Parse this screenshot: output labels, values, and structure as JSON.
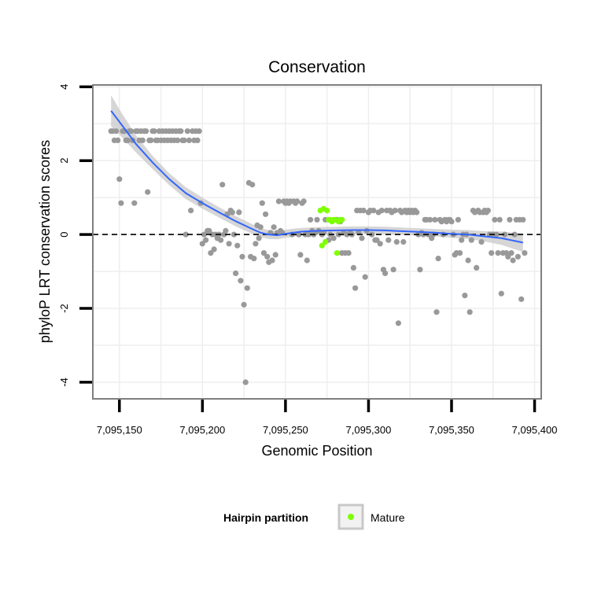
{
  "chart_data": {
    "type": "scatter",
    "title": "Conservation",
    "xlabel": "Genomic Position",
    "ylabel": "phyloP LRT conservation scores",
    "xlim": [
      7095134,
      7095404
    ],
    "ylim": [
      -4.45,
      4.05
    ],
    "x_ticks": [
      7095150,
      7095200,
      7095250,
      7095300,
      7095350,
      7095400
    ],
    "x_tick_labels": [
      "7,095,150",
      "7,095,200",
      "7,095,250",
      "7,095,300",
      "7,095,350",
      "7,095,400"
    ],
    "y_ticks": [
      -4,
      -2,
      0,
      2,
      4
    ],
    "y_tick_labels": [
      "-4",
      "-2",
      "0",
      "2",
      "4"
    ],
    "reference_line": {
      "y": 0,
      "style": "dashed"
    },
    "legend": {
      "title": "Hairpin partition",
      "position": "bottom",
      "entries": [
        "Mature"
      ]
    },
    "colors": {
      "Hairpin": "#999999",
      "Mature": "#7fff00",
      "smooth_line": "#3366ff",
      "confidence_band": "#c8c8c8",
      "panel_border": "#7f7f7f",
      "grid": "#eeeeee"
    },
    "series": [
      {
        "name": "Hairpin",
        "points": [
          [
            7095145,
            2.8
          ],
          [
            7095146,
            2.8
          ],
          [
            7095147,
            2.55
          ],
          [
            7095148,
            2.8
          ],
          [
            7095149,
            2.55
          ],
          [
            7095150,
            1.5
          ],
          [
            7095151,
            0.85
          ],
          [
            7095152,
            2.8
          ],
          [
            7095153,
            2.8
          ],
          [
            7095154,
            2.55
          ],
          [
            7095155,
            2.55
          ],
          [
            7095156,
            2.8
          ],
          [
            7095157,
            2.8
          ],
          [
            7095158,
            2.55
          ],
          [
            7095159,
            0.85
          ],
          [
            7095160,
            2.8
          ],
          [
            7095161,
            2.8
          ],
          [
            7095162,
            2.55
          ],
          [
            7095163,
            2.8
          ],
          [
            7095164,
            2.55
          ],
          [
            7095165,
            2.8
          ],
          [
            7095166,
            2.8
          ],
          [
            7095167,
            1.15
          ],
          [
            7095168,
            2.55
          ],
          [
            7095169,
            2.55
          ],
          [
            7095170,
            2.8
          ],
          [
            7095171,
            2.8
          ],
          [
            7095172,
            2.55
          ],
          [
            7095173,
            2.55
          ],
          [
            7095174,
            2.8
          ],
          [
            7095175,
            2.55
          ],
          [
            7095176,
            2.8
          ],
          [
            7095177,
            2.55
          ],
          [
            7095178,
            2.8
          ],
          [
            7095179,
            2.55
          ],
          [
            7095180,
            2.8
          ],
          [
            7095181,
            2.55
          ],
          [
            7095182,
            2.8
          ],
          [
            7095183,
            2.55
          ],
          [
            7095184,
            2.8
          ],
          [
            7095185,
            2.55
          ],
          [
            7095186,
            2.8
          ],
          [
            7095187,
            2.8
          ],
          [
            7095188,
            2.55
          ],
          [
            7095189,
            2.55
          ],
          [
            7095190,
            0.0
          ],
          [
            7095191,
            2.8
          ],
          [
            7095192,
            2.55
          ],
          [
            7095193,
            0.65
          ],
          [
            7095194,
            2.8
          ],
          [
            7095195,
            2.55
          ],
          [
            7095196,
            2.8
          ],
          [
            7095197,
            2.55
          ],
          [
            7095198,
            2.8
          ],
          [
            7095199,
            0.85
          ],
          [
            7095200,
            -0.25
          ],
          [
            7095201,
            0.0
          ],
          [
            7095202,
            -0.15
          ],
          [
            7095203,
            0.1
          ],
          [
            7095204,
            0.1
          ],
          [
            7095205,
            -0.5
          ],
          [
            7095206,
            0.0
          ],
          [
            7095207,
            -0.4
          ],
          [
            7095208,
            0.0
          ],
          [
            7095209,
            -0.1
          ],
          [
            7095210,
            0.0
          ],
          [
            7095211,
            -0.15
          ],
          [
            7095212,
            1.35
          ],
          [
            7095213,
            0.0
          ],
          [
            7095214,
            0.1
          ],
          [
            7095215,
            0.55
          ],
          [
            7095216,
            -0.25
          ],
          [
            7095217,
            0.65
          ],
          [
            7095218,
            0.6
          ],
          [
            7095219,
            0.0
          ],
          [
            7095220,
            -1.05
          ],
          [
            7095221,
            -0.3
          ],
          [
            7095222,
            0.6
          ],
          [
            7095223,
            -1.25
          ],
          [
            7095224,
            -0.6
          ],
          [
            7095225,
            -1.9
          ],
          [
            7095226,
            -4.0
          ],
          [
            7095227,
            -1.45
          ],
          [
            7095228,
            1.4
          ],
          [
            7095229,
            -0.6
          ],
          [
            7095230,
            1.35
          ],
          [
            7095231,
            -0.65
          ],
          [
            7095232,
            -0.25
          ],
          [
            7095233,
            0.25
          ],
          [
            7095234,
            -0.1
          ],
          [
            7095235,
            0.2
          ],
          [
            7095236,
            0.85
          ],
          [
            7095237,
            -0.5
          ],
          [
            7095238,
            0.55
          ],
          [
            7095239,
            -0.6
          ],
          [
            7095240,
            -0.75
          ],
          [
            7095241,
            0.05
          ],
          [
            7095242,
            -0.7
          ],
          [
            7095243,
            0.2
          ],
          [
            7095244,
            -0.55
          ],
          [
            7095245,
            0.05
          ],
          [
            7095246,
            0.9
          ],
          [
            7095247,
            0.1
          ],
          [
            7095248,
            0.05
          ],
          [
            7095249,
            0.9
          ],
          [
            7095250,
            0.85
          ],
          [
            7095251,
            0.9
          ],
          [
            7095252,
            0.85
          ],
          [
            7095253,
            0.9
          ],
          [
            7095254,
            0.0
          ],
          [
            7095255,
            0.9
          ],
          [
            7095256,
            0.85
          ],
          [
            7095257,
            0.9
          ],
          [
            7095258,
            0.0
          ],
          [
            7095259,
            -0.55
          ],
          [
            7095260,
            0.85
          ],
          [
            7095261,
            0.9
          ],
          [
            7095262,
            0.0
          ],
          [
            7095263,
            -0.7
          ],
          [
            7095264,
            0.0
          ],
          [
            7095265,
            0.4
          ],
          [
            7095266,
            0.1
          ],
          [
            7095267,
            0.0
          ],
          [
            7095268,
            0.05
          ],
          [
            7095269,
            0.4
          ],
          [
            7095270,
            0.1
          ],
          [
            7095272,
            0.0
          ],
          [
            7095273,
            0.05
          ],
          [
            7095274,
            0.4
          ],
          [
            7095276,
            -0.15
          ],
          [
            7095277,
            0.0
          ],
          [
            7095279,
            -0.1
          ],
          [
            7095281,
            0.4
          ],
          [
            7095282,
            0.0
          ],
          [
            7095283,
            0.35
          ],
          [
            7095284,
            -0.5
          ],
          [
            7095285,
            0.05
          ],
          [
            7095286,
            -0.5
          ],
          [
            7095287,
            0.0
          ],
          [
            7095288,
            -0.5
          ],
          [
            7095289,
            0.05
          ],
          [
            7095290,
            0.0
          ],
          [
            7095291,
            -0.9
          ],
          [
            7095292,
            -1.45
          ],
          [
            7095293,
            0.65
          ],
          [
            7095294,
            0.05
          ],
          [
            7095295,
            0.65
          ],
          [
            7095296,
            -0.1
          ],
          [
            7095297,
            0.65
          ],
          [
            7095298,
            -1.15
          ],
          [
            7095299,
            0.1
          ],
          [
            7095300,
            0.6
          ],
          [
            7095301,
            0.65
          ],
          [
            7095302,
            0.0
          ],
          [
            7095303,
            0.65
          ],
          [
            7095304,
            -0.15
          ],
          [
            7095305,
            -0.15
          ],
          [
            7095306,
            0.6
          ],
          [
            7095307,
            -0.25
          ],
          [
            7095308,
            0.65
          ],
          [
            7095309,
            -0.95
          ],
          [
            7095310,
            -1.05
          ],
          [
            7095311,
            0.65
          ],
          [
            7095312,
            -0.15
          ],
          [
            7095313,
            0.65
          ],
          [
            7095314,
            0.6
          ],
          [
            7095315,
            -0.95
          ],
          [
            7095316,
            0.65
          ],
          [
            7095317,
            -0.2
          ],
          [
            7095318,
            -2.4
          ],
          [
            7095319,
            0.65
          ],
          [
            7095320,
            0.6
          ],
          [
            7095321,
            -0.2
          ],
          [
            7095322,
            0.65
          ],
          [
            7095323,
            0.6
          ],
          [
            7095324,
            0.65
          ],
          [
            7095325,
            0.6
          ],
          [
            7095326,
            0.65
          ],
          [
            7095327,
            0.6
          ],
          [
            7095328,
            0.65
          ],
          [
            7095329,
            0.6
          ],
          [
            7095330,
            0.0
          ],
          [
            7095331,
            -0.95
          ],
          [
            7095332,
            0.05
          ],
          [
            7095333,
            0.0
          ],
          [
            7095334,
            0.4
          ],
          [
            7095335,
            0.4
          ],
          [
            7095336,
            0.0
          ],
          [
            7095337,
            0.4
          ],
          [
            7095338,
            -0.1
          ],
          [
            7095339,
            0.0
          ],
          [
            7095340,
            0.4
          ],
          [
            7095341,
            -2.1
          ],
          [
            7095342,
            -0.65
          ],
          [
            7095343,
            0.4
          ],
          [
            7095344,
            0.35
          ],
          [
            7095345,
            0.0
          ],
          [
            7095346,
            0.4
          ],
          [
            7095347,
            0.35
          ],
          [
            7095348,
            0.4
          ],
          [
            7095349,
            0.4
          ],
          [
            7095350,
            0.35
          ],
          [
            7095351,
            0.0
          ],
          [
            7095352,
            -0.55
          ],
          [
            7095353,
            -0.5
          ],
          [
            7095354,
            0.4
          ],
          [
            7095355,
            -0.5
          ],
          [
            7095356,
            -0.15
          ],
          [
            7095357,
            0.0
          ],
          [
            7095358,
            -1.65
          ],
          [
            7095359,
            0.0
          ],
          [
            7095360,
            -0.7
          ],
          [
            7095361,
            -2.1
          ],
          [
            7095362,
            -0.15
          ],
          [
            7095363,
            0.65
          ],
          [
            7095364,
            0.6
          ],
          [
            7095365,
            -0.9
          ],
          [
            7095366,
            0.65
          ],
          [
            7095367,
            0.6
          ],
          [
            7095368,
            -0.2
          ],
          [
            7095369,
            0.6
          ],
          [
            7095370,
            0.65
          ],
          [
            7095371,
            0.6
          ],
          [
            7095372,
            0.65
          ],
          [
            7095373,
            0.0
          ],
          [
            7095374,
            -0.5
          ],
          [
            7095375,
            0.0
          ],
          [
            7095376,
            0.4
          ],
          [
            7095377,
            0.0
          ],
          [
            7095378,
            -0.5
          ],
          [
            7095379,
            0.4
          ],
          [
            7095380,
            -1.6
          ],
          [
            7095381,
            -0.5
          ],
          [
            7095382,
            0.0
          ],
          [
            7095383,
            -0.5
          ],
          [
            7095384,
            -0.6
          ],
          [
            7095385,
            0.4
          ],
          [
            7095386,
            -0.5
          ],
          [
            7095387,
            -0.7
          ],
          [
            7095388,
            0.0
          ],
          [
            7095389,
            0.4
          ],
          [
            7095390,
            -0.6
          ],
          [
            7095391,
            0.4
          ],
          [
            7095392,
            -1.75
          ],
          [
            7095393,
            0.4
          ],
          [
            7095394,
            -0.5
          ]
        ]
      },
      {
        "name": "Mature",
        "points": [
          [
            7095271,
            0.65
          ],
          [
            7095272,
            -0.3
          ],
          [
            7095273,
            0.7
          ],
          [
            7095274,
            -0.2
          ],
          [
            7095275,
            0.65
          ],
          [
            7095276,
            0.4
          ],
          [
            7095277,
            0.4
          ],
          [
            7095278,
            0.35
          ],
          [
            7095279,
            0.4
          ],
          [
            7095280,
            0.4
          ],
          [
            7095281,
            -0.5
          ],
          [
            7095282,
            0.35
          ],
          [
            7095283,
            0.4
          ],
          [
            7095284,
            0.4
          ]
        ]
      }
    ],
    "smooth": {
      "x": [
        7095145,
        7095150,
        7095160,
        7095170,
        7095180,
        7095190,
        7095200,
        7095210,
        7095220,
        7095230,
        7095235,
        7095240,
        7095245,
        7095250,
        7095255,
        7095260,
        7095270,
        7095280,
        7095290,
        7095300,
        7095310,
        7095320,
        7095330,
        7095340,
        7095350,
        7095360,
        7095370,
        7095380,
        7095393
      ],
      "y": [
        3.35,
        3.05,
        2.45,
        1.95,
        1.5,
        1.12,
        0.85,
        0.6,
        0.36,
        0.15,
        0.05,
        0.0,
        -0.02,
        0.02,
        0.05,
        0.08,
        0.1,
        0.11,
        0.12,
        0.12,
        0.11,
        0.09,
        0.07,
        0.05,
        0.02,
        0.0,
        -0.05,
        -0.1,
        -0.22
      ],
      "se": [
        0.42,
        0.34,
        0.23,
        0.18,
        0.16,
        0.16,
        0.15,
        0.14,
        0.14,
        0.13,
        0.12,
        0.12,
        0.11,
        0.11,
        0.11,
        0.1,
        0.1,
        0.1,
        0.1,
        0.1,
        0.1,
        0.1,
        0.1,
        0.1,
        0.11,
        0.12,
        0.14,
        0.18,
        0.25
      ]
    }
  }
}
